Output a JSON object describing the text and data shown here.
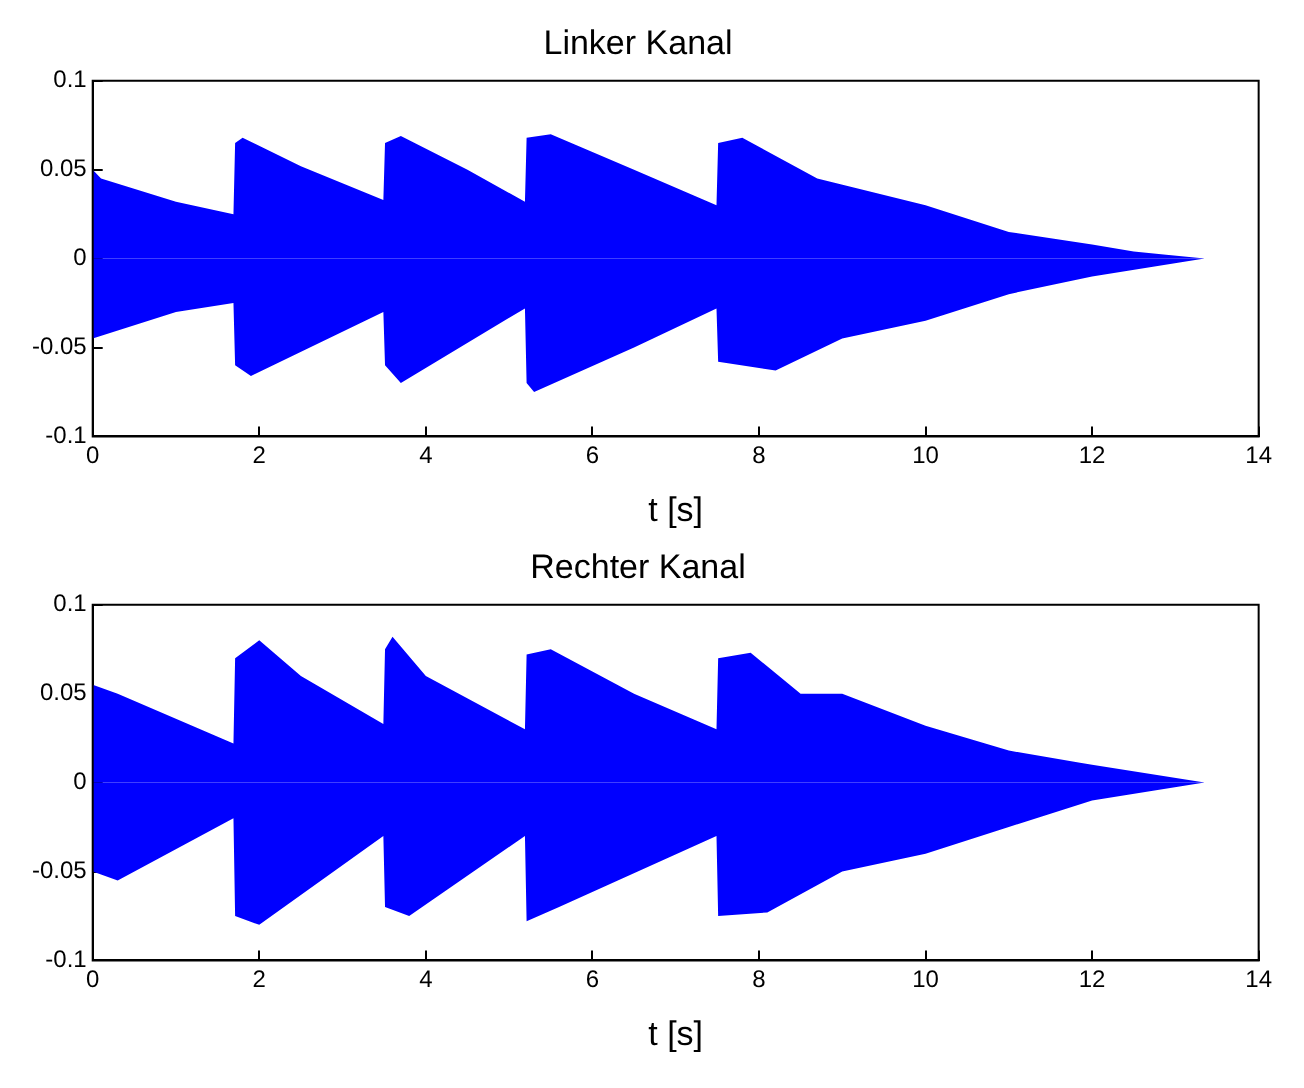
{
  "chart_data": [
    {
      "type": "area",
      "title": "Linker Kanal",
      "xlabel": "t [s]",
      "xlim": [
        0,
        14
      ],
      "xticks": [
        0,
        2,
        4,
        6,
        8,
        10,
        12,
        14
      ],
      "ylim": [
        -0.1,
        0.1
      ],
      "yticks": [
        -0.1,
        -0.05,
        0,
        0.05,
        0.1
      ],
      "grid": false,
      "legend": false,
      "series": [
        {
          "color": "#0000ff",
          "x": [
            0,
            0.1,
            1.0,
            1.69,
            1.71,
            1.8,
            2.5,
            3.49,
            3.51,
            3.7,
            4.5,
            5.19,
            5.21,
            5.5,
            6.5,
            7.49,
            7.51,
            7.8,
            8.7,
            10,
            11,
            12,
            12.5,
            13.35
          ],
          "values": [
            0.05,
            0.045,
            0.032,
            0.025,
            0.065,
            0.068,
            0.052,
            0.033,
            0.065,
            0.069,
            0.05,
            0.032,
            0.068,
            0.07,
            0.05,
            0.03,
            0.065,
            0.068,
            0.045,
            0.03,
            0.015,
            0.008,
            0.004,
            0
          ]
        },
        {
          "color": "#0000ff",
          "x": [
            0,
            1.0,
            1.69,
            1.71,
            1.9,
            3.49,
            3.51,
            3.7,
            5.19,
            5.21,
            5.3,
            6.5,
            7.49,
            7.51,
            8.2,
            9,
            10,
            11,
            12,
            13.35
          ],
          "values": [
            -0.045,
            -0.03,
            -0.025,
            -0.06,
            -0.066,
            -0.03,
            -0.06,
            -0.07,
            -0.028,
            -0.07,
            -0.075,
            -0.05,
            -0.028,
            -0.058,
            -0.063,
            -0.045,
            -0.035,
            -0.02,
            -0.01,
            0
          ]
        }
      ]
    },
    {
      "type": "area",
      "title": "Rechter Kanal",
      "xlabel": "t [s]",
      "xlim": [
        0,
        14
      ],
      "xticks": [
        0,
        2,
        4,
        6,
        8,
        10,
        12,
        14
      ],
      "ylim": [
        -0.1,
        0.1
      ],
      "yticks": [
        -0.1,
        -0.05,
        0,
        0.05,
        0.1
      ],
      "grid": false,
      "legend": false,
      "series": [
        {
          "color": "#0000ff",
          "x": [
            0,
            0.3,
            1.69,
            1.71,
            2.0,
            2.5,
            3.49,
            3.51,
            3.6,
            4,
            5.19,
            5.21,
            5.5,
            6.5,
            7.49,
            7.51,
            7.9,
            8.5,
            9,
            10,
            11,
            12,
            13.35
          ],
          "values": [
            0.055,
            0.05,
            0.022,
            0.07,
            0.08,
            0.06,
            0.033,
            0.075,
            0.082,
            0.06,
            0.03,
            0.072,
            0.075,
            0.05,
            0.03,
            0.07,
            0.073,
            0.05,
            0.05,
            0.032,
            0.018,
            0.01,
            0
          ]
        },
        {
          "color": "#0000ff",
          "x": [
            0,
            0.3,
            1.69,
            1.71,
            2.0,
            3.49,
            3.51,
            3.8,
            5.19,
            5.21,
            5.6,
            7.49,
            7.51,
            8.1,
            9,
            10,
            11,
            12,
            13.35
          ],
          "values": [
            -0.05,
            -0.055,
            -0.02,
            -0.075,
            -0.08,
            -0.03,
            -0.07,
            -0.075,
            -0.03,
            -0.078,
            -0.07,
            -0.03,
            -0.075,
            -0.073,
            -0.05,
            -0.04,
            -0.025,
            -0.01,
            0
          ]
        }
      ]
    }
  ]
}
